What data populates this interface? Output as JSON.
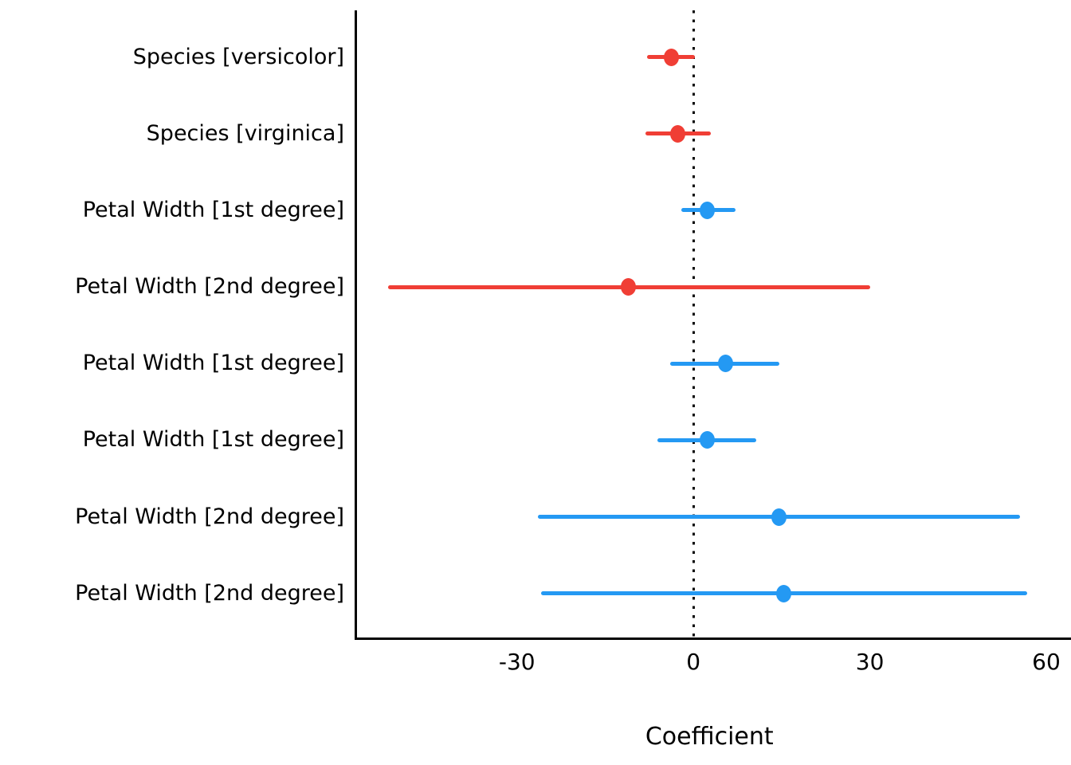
{
  "chart_data": {
    "type": "scatter",
    "subtype": "coefficient-forest-plot",
    "title": "",
    "xlabel": "Coefficient",
    "ylabel": "",
    "x_ticks": [
      -30,
      0,
      30,
      60
    ],
    "x_tick_labels": [
      "-30",
      "0",
      "30",
      "60"
    ],
    "xlim": [
      -57.4,
      64.2
    ],
    "zero_reference_line": 0,
    "grid": false,
    "legend_position": "none",
    "colors": {
      "positive": "#2499F3",
      "negative": "#F03E35",
      "axis": "#000000",
      "background": "#ffffff"
    },
    "rows": [
      {
        "label": "Species [versicolor]",
        "estimate": -3.7,
        "ci_low": -7.9,
        "ci_high": 0.3,
        "color": "negative"
      },
      {
        "label": "Species [virginica]",
        "estimate": -2.6,
        "ci_low": -8.2,
        "ci_high": 2.9,
        "color": "negative"
      },
      {
        "label": "Petal Width [1st degree]",
        "estimate": 2.4,
        "ci_low": -2.1,
        "ci_high": 7.1,
        "color": "positive"
      },
      {
        "label": "Petal Width [2nd degree]",
        "estimate": -11.0,
        "ci_low": -51.9,
        "ci_high": 30.0,
        "color": "negative"
      },
      {
        "label": "Petal Width [1st degree]",
        "estimate": 5.4,
        "ci_low": -4.0,
        "ci_high": 14.6,
        "color": "positive"
      },
      {
        "label": "Petal Width [1st degree]",
        "estimate": 2.3,
        "ci_low": -6.1,
        "ci_high": 10.7,
        "color": "positive"
      },
      {
        "label": "Petal Width [2nd degree]",
        "estimate": 14.5,
        "ci_low": -26.5,
        "ci_high": 55.5,
        "color": "positive"
      },
      {
        "label": "Petal Width [2nd degree]",
        "estimate": 15.4,
        "ci_low": -25.9,
        "ci_high": 56.7,
        "color": "positive"
      }
    ]
  }
}
